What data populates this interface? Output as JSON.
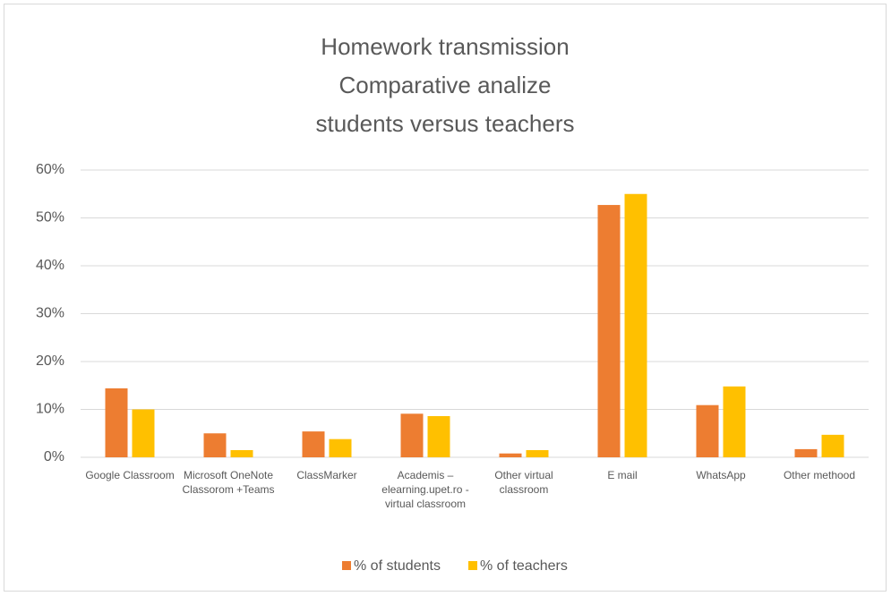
{
  "chart_data": {
    "type": "bar",
    "title": [
      "Homework transmission",
      "Comparative analize",
      "students versus teachers"
    ],
    "categories": [
      "Google Classroom",
      "Microsoft OneNote Classorom +Teams",
      "ClassMarker",
      "Academis – elearning.upet.ro - virtual classroom",
      "Other virtual classroom",
      "E mail",
      "WhatsApp",
      "Other methood"
    ],
    "series": [
      {
        "name": "% of students",
        "color": "#ed7d31",
        "values": [
          14.4,
          5.0,
          5.4,
          9.1,
          0.8,
          52.7,
          10.9,
          1.7
        ]
      },
      {
        "name": "% of teachers",
        "color": "#ffc000",
        "values": [
          10.0,
          1.5,
          3.8,
          8.6,
          1.5,
          55.0,
          14.8,
          4.7
        ]
      }
    ],
    "ylim": [
      0,
      60
    ],
    "yticks": [
      {
        "value": 0,
        "label": "0%"
      },
      {
        "value": 10,
        "label": "10%"
      },
      {
        "value": 20,
        "label": "20%"
      },
      {
        "value": 30,
        "label": "30%"
      },
      {
        "value": 40,
        "label": "40%"
      },
      {
        "value": 50,
        "label": "50%"
      },
      {
        "value": 60,
        "label": "60%"
      }
    ],
    "grid": true,
    "legend": "bottom"
  }
}
